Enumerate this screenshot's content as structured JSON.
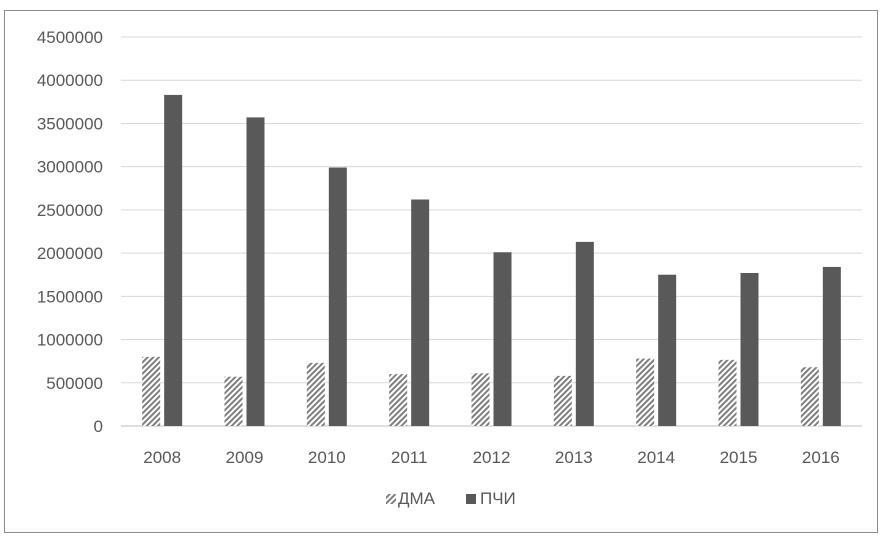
{
  "chart_data": {
    "type": "bar",
    "categories": [
      "2008",
      "2009",
      "2010",
      "2011",
      "2012",
      "2013",
      "2014",
      "2015",
      "2016"
    ],
    "series": [
      {
        "name": "ДМА",
        "values": [
          800000,
          570000,
          730000,
          600000,
          610000,
          580000,
          780000,
          765000,
          680000
        ],
        "pattern": "diagonal-hatch",
        "color": "#7f7f7f"
      },
      {
        "name": "ПЧИ",
        "values": [
          3830000,
          3570000,
          2990000,
          2620000,
          2010000,
          2130000,
          1750000,
          1770000,
          1840000
        ],
        "pattern": "solid",
        "color": "#595959"
      }
    ],
    "yticks": [
      "0",
      "500000",
      "1000000",
      "1500000",
      "2000000",
      "2500000",
      "3000000",
      "3500000",
      "4000000",
      "4500000"
    ],
    "ylim": [
      0,
      4500000
    ],
    "grid": true,
    "legend_position": "bottom"
  }
}
